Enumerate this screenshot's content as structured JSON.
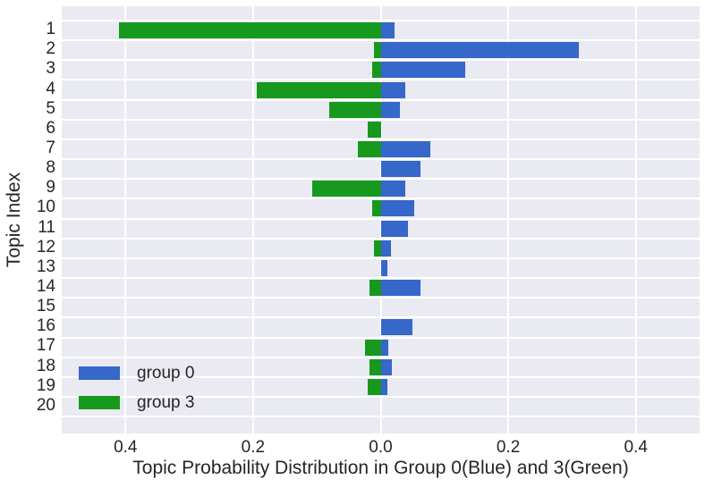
{
  "figure": {
    "background": "#FFFFFF",
    "plot_background": "#EAEAF2",
    "grid_color": "#FFFFFF",
    "text_color": "#262626"
  },
  "chart_data": {
    "type": "bar",
    "orientation": "horizontal",
    "title": "",
    "xlabel": "Topic Probability Distribution in Group 0(Blue) and 3(Green)",
    "ylabel": "Topic Index",
    "categories": [
      "1",
      "2",
      "3",
      "4",
      "5",
      "6",
      "7",
      "8",
      "9",
      "10",
      "11",
      "12",
      "13",
      "14",
      "15",
      "16",
      "17",
      "18",
      "19",
      "20"
    ],
    "series": [
      {
        "name": "group 0",
        "color": "#3667CA",
        "direction": "right",
        "values": [
          0.022,
          0.31,
          0.133,
          0.038,
          0.03,
          0,
          0.078,
          0.062,
          0.038,
          0.053,
          0.043,
          0.016,
          0.01,
          0.062,
          0,
          0.05,
          0.012,
          0.018,
          0.011,
          0
        ]
      },
      {
        "name": "group 3",
        "color": "#16991C",
        "direction": "left",
        "values": [
          0.41,
          0.011,
          0.014,
          0.194,
          0.08,
          0.02,
          0.036,
          0,
          0.108,
          0.013,
          0,
          0.011,
          0,
          0.017,
          0,
          0,
          0.024,
          0.017,
          0.02,
          0
        ]
      }
    ],
    "xlim": [
      -0.5,
      0.5
    ],
    "xticks": [
      {
        "value": -0.4,
        "label": "0.4"
      },
      {
        "value": -0.2,
        "label": "0.2"
      },
      {
        "value": 0.0,
        "label": "0.0"
      },
      {
        "value": 0.2,
        "label": "0.2"
      },
      {
        "value": 0.4,
        "label": "0.4"
      }
    ],
    "grid": "on",
    "legend_position": "lower-left"
  },
  "legend": {
    "items": [
      {
        "label": "group 0",
        "color": "#3667CA"
      },
      {
        "label": "group 3",
        "color": "#16991C"
      }
    ]
  }
}
